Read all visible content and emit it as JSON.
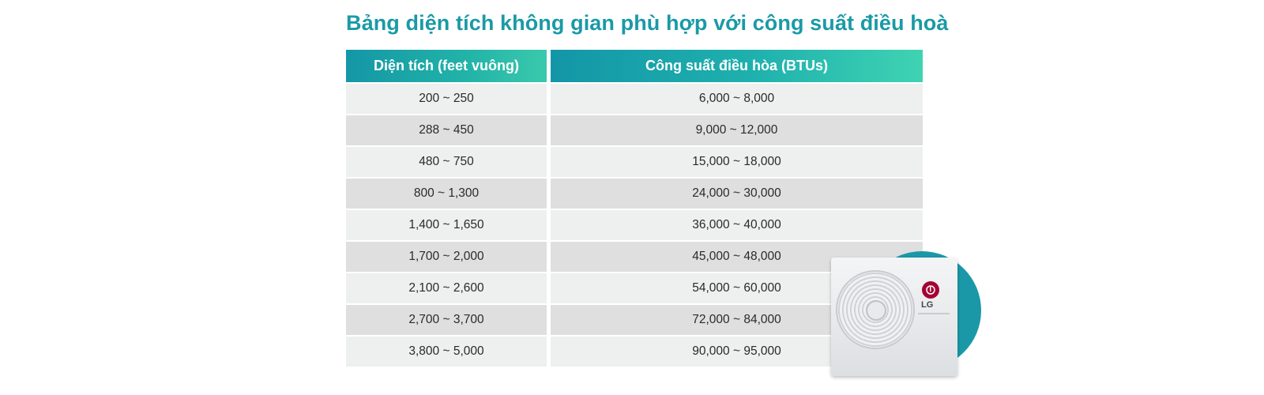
{
  "title": "Bảng diện tích không gian phù hợp với công suất điều hoà",
  "table": {
    "headers": [
      "Diện tích (feet vuông)",
      "Công suất điều hòa (BTUs)"
    ],
    "rows": [
      [
        "200 ~ 250",
        "6,000 ~ 8,000"
      ],
      [
        "288 ~ 450",
        "9,000 ~ 12,000"
      ],
      [
        "480 ~ 750",
        "15,000 ~ 18,000"
      ],
      [
        "800 ~ 1,300",
        "24,000 ~ 30,000"
      ],
      [
        "1,400 ~ 1,650",
        "36,000 ~ 40,000"
      ],
      [
        "1,700 ~ 2,000",
        "45,000 ~ 48,000"
      ],
      [
        "2,100 ~ 2,600",
        "54,000 ~ 60,000"
      ],
      [
        "2,700 ~ 3,700",
        "72,000 ~ 84,000"
      ],
      [
        "3,800 ~ 5,000",
        "90,000 ~ 95,000"
      ]
    ]
  },
  "image": {
    "brand_logo": "LG",
    "icon": "air-conditioner-outdoor-unit",
    "accent_color": "#1a98a8"
  },
  "colors": {
    "title": "#1a9aa6",
    "header_gradient_start": "#1497a6",
    "header_gradient_end": "#3fd3b3",
    "row_light": "#eeefef",
    "row_dark": "#dfdfdf"
  }
}
